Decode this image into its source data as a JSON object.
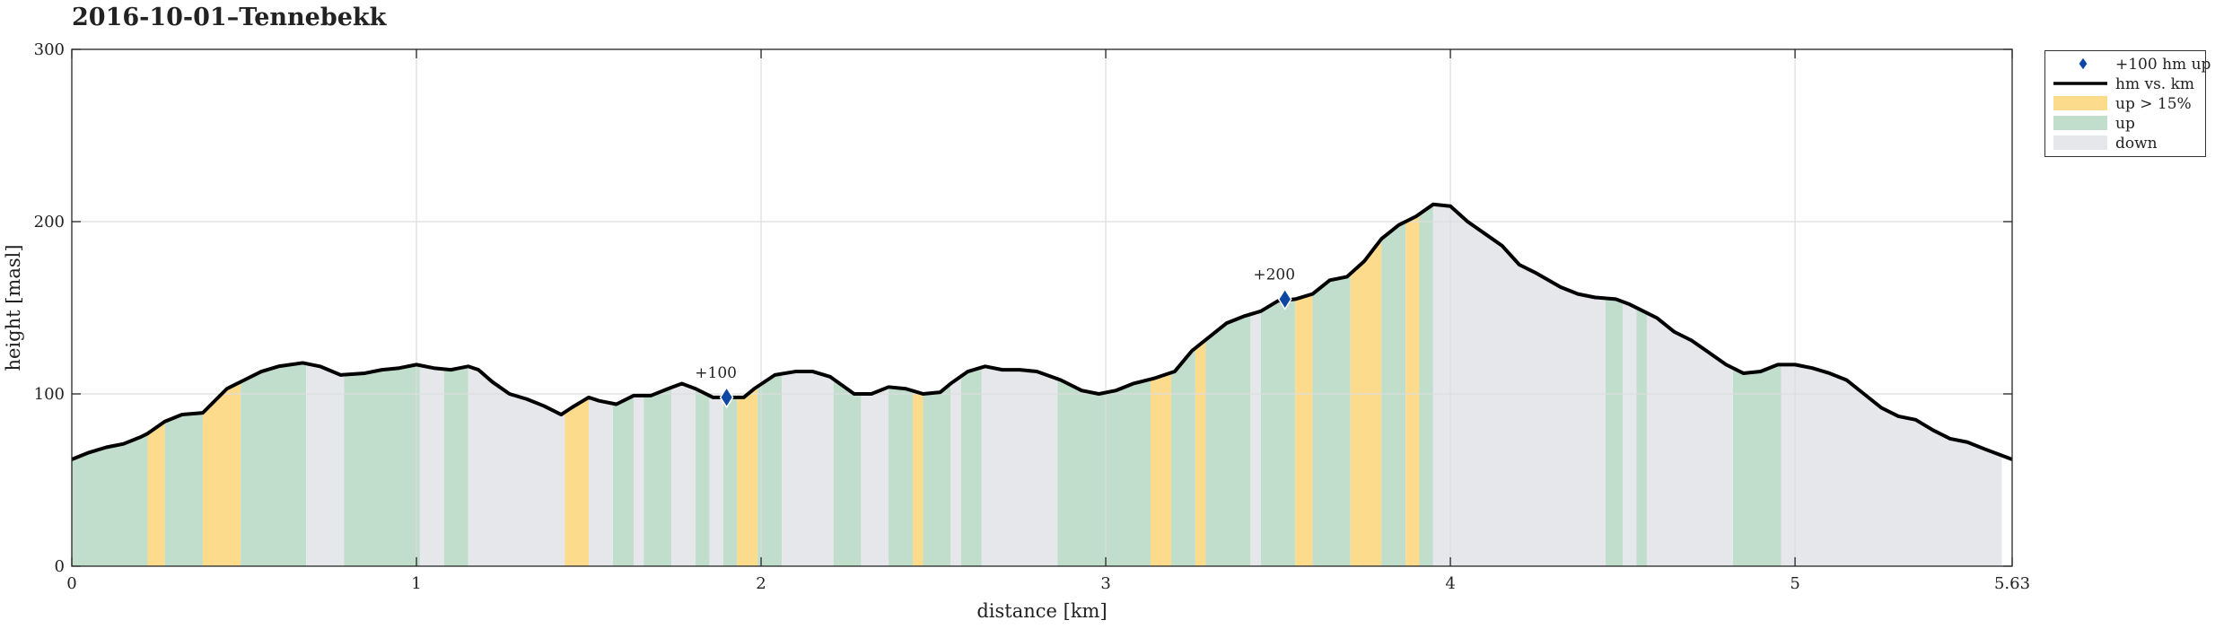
{
  "chart_data": {
    "type": "area",
    "title": "2016-10-01–Tennebekk",
    "xlabel": "distance [km]",
    "ylabel": "height [masl]",
    "xlim": [
      0,
      5.63
    ],
    "ylim": [
      0,
      300
    ],
    "xticks": [
      0,
      1,
      2,
      3,
      4,
      5,
      5.63
    ],
    "xtick_labels": [
      "0",
      "1",
      "2",
      "3",
      "4",
      "5",
      "5.63"
    ],
    "yticks": [
      0,
      100,
      200,
      300
    ],
    "ytick_labels": [
      "0",
      "100",
      "200",
      "300"
    ],
    "grid": true,
    "legend_position": "outside-right-top",
    "colors": {
      "line": "#000000",
      "steep_up": "#fddb8c",
      "up": "#c1ddcc",
      "down": "#e6e7ea",
      "marker": "#0d47a1",
      "grid": "#dddddd"
    },
    "legend": [
      {
        "key": "marker",
        "label": "+100 hm up"
      },
      {
        "key": "line",
        "label": "hm vs. km"
      },
      {
        "key": "steep_up",
        "label": "up > 15%"
      },
      {
        "key": "up",
        "label": "up"
      },
      {
        "key": "down",
        "label": "down"
      }
    ],
    "series": [
      {
        "name": "hm vs. km",
        "x": [
          0,
          0.05,
          0.1,
          0.15,
          0.2,
          0.22,
          0.27,
          0.32,
          0.38,
          0.45,
          0.5,
          0.55,
          0.6,
          0.67,
          0.72,
          0.78,
          0.85,
          0.9,
          0.95,
          1.0,
          1.05,
          1.1,
          1.15,
          1.18,
          1.22,
          1.27,
          1.32,
          1.37,
          1.42,
          1.45,
          1.5,
          1.53,
          1.58,
          1.63,
          1.68,
          1.73,
          1.77,
          1.81,
          1.86,
          1.9,
          1.95,
          1.98,
          2.04,
          2.1,
          2.15,
          2.2,
          2.27,
          2.32,
          2.37,
          2.42,
          2.47,
          2.52,
          2.55,
          2.6,
          2.65,
          2.7,
          2.75,
          2.8,
          2.87,
          2.93,
          2.98,
          3.03,
          3.08,
          3.14,
          3.2,
          3.25,
          3.3,
          3.35,
          3.4,
          3.45,
          3.5,
          3.55,
          3.6,
          3.65,
          3.7,
          3.75,
          3.8,
          3.85,
          3.9,
          3.95,
          4.0,
          4.05,
          4.1,
          4.15,
          4.2,
          4.25,
          4.32,
          4.37,
          4.42,
          4.48,
          4.52,
          4.56,
          4.6,
          4.65,
          4.7,
          4.75,
          4.8,
          4.85,
          4.9,
          4.95,
          5.0,
          5.05,
          5.1,
          5.15,
          5.2,
          5.25,
          5.3,
          5.35,
          5.4,
          5.45,
          5.5,
          5.55,
          5.63
        ],
        "y": [
          62,
          66,
          69,
          71,
          75,
          77,
          84,
          88,
          89,
          103,
          108,
          113,
          116,
          118,
          116,
          111,
          112,
          114,
          115,
          117,
          115,
          114,
          116,
          114,
          107,
          100,
          97,
          93,
          88,
          92,
          98,
          96,
          94,
          99,
          99,
          103,
          106,
          103,
          98,
          98,
          98,
          103,
          111,
          113,
          113,
          110,
          100,
          100,
          104,
          103,
          100,
          101,
          106,
          113,
          116,
          114,
          114,
          113,
          108,
          102,
          100,
          102,
          106,
          109,
          113,
          125,
          133,
          141,
          145,
          148,
          154,
          155,
          158,
          166,
          168,
          177,
          190,
          198,
          203,
          210,
          209,
          200,
          193,
          186,
          175,
          170,
          162,
          158,
          156,
          155,
          152,
          148,
          144,
          136,
          131,
          124,
          117,
          112,
          113,
          117,
          117,
          115,
          112,
          108,
          100,
          92,
          87,
          85,
          79,
          74,
          72,
          68,
          62
        ]
      }
    ],
    "shading_bands": [
      {
        "type": "up",
        "from": 0.0,
        "to": 0.22
      },
      {
        "type": "steep_up",
        "from": 0.22,
        "to": 0.27
      },
      {
        "type": "up",
        "from": 0.27,
        "to": 0.38
      },
      {
        "type": "steep_up",
        "from": 0.38,
        "to": 0.49
      },
      {
        "type": "up",
        "from": 0.49,
        "to": 0.68
      },
      {
        "type": "down",
        "from": 0.68,
        "to": 0.79
      },
      {
        "type": "up",
        "from": 0.79,
        "to": 1.01
      },
      {
        "type": "down",
        "from": 1.01,
        "to": 1.08
      },
      {
        "type": "up",
        "from": 1.08,
        "to": 1.15
      },
      {
        "type": "down",
        "from": 1.15,
        "to": 1.43
      },
      {
        "type": "steep_up",
        "from": 1.43,
        "to": 1.5
      },
      {
        "type": "down",
        "from": 1.5,
        "to": 1.57
      },
      {
        "type": "up",
        "from": 1.57,
        "to": 1.63
      },
      {
        "type": "down",
        "from": 1.63,
        "to": 1.66
      },
      {
        "type": "up",
        "from": 1.66,
        "to": 1.74
      },
      {
        "type": "down",
        "from": 1.74,
        "to": 1.81
      },
      {
        "type": "up",
        "from": 1.81,
        "to": 1.85
      },
      {
        "type": "down",
        "from": 1.85,
        "to": 1.89
      },
      {
        "type": "up",
        "from": 1.89,
        "to": 1.93
      },
      {
        "type": "steep_up",
        "from": 1.93,
        "to": 1.99
      },
      {
        "type": "up",
        "from": 1.99,
        "to": 2.06
      },
      {
        "type": "down",
        "from": 2.06,
        "to": 2.21
      },
      {
        "type": "up",
        "from": 2.21,
        "to": 2.29
      },
      {
        "type": "down",
        "from": 2.29,
        "to": 2.37
      },
      {
        "type": "up",
        "from": 2.37,
        "to": 2.44
      },
      {
        "type": "steep_up",
        "from": 2.44,
        "to": 2.47
      },
      {
        "type": "up",
        "from": 2.47,
        "to": 2.55
      },
      {
        "type": "down",
        "from": 2.55,
        "to": 2.58
      },
      {
        "type": "up",
        "from": 2.58,
        "to": 2.64
      },
      {
        "type": "down",
        "from": 2.64,
        "to": 2.86
      },
      {
        "type": "up",
        "from": 2.86,
        "to": 3.13
      },
      {
        "type": "steep_up",
        "from": 3.13,
        "to": 3.19
      },
      {
        "type": "up",
        "from": 3.19,
        "to": 3.26
      },
      {
        "type": "steep_up",
        "from": 3.26,
        "to": 3.29
      },
      {
        "type": "up",
        "from": 3.29,
        "to": 3.42
      },
      {
        "type": "down",
        "from": 3.42,
        "to": 3.45
      },
      {
        "type": "up",
        "from": 3.45,
        "to": 3.55
      },
      {
        "type": "steep_up",
        "from": 3.55,
        "to": 3.6
      },
      {
        "type": "up",
        "from": 3.6,
        "to": 3.71
      },
      {
        "type": "steep_up",
        "from": 3.71,
        "to": 3.8
      },
      {
        "type": "up",
        "from": 3.8,
        "to": 3.87
      },
      {
        "type": "steep_up",
        "from": 3.87,
        "to": 3.91
      },
      {
        "type": "up",
        "from": 3.91,
        "to": 3.95
      },
      {
        "type": "down",
        "from": 3.95,
        "to": 4.45
      },
      {
        "type": "up",
        "from": 4.45,
        "to": 4.5
      },
      {
        "type": "down",
        "from": 4.5,
        "to": 4.54
      },
      {
        "type": "up",
        "from": 4.54,
        "to": 4.57
      },
      {
        "type": "down",
        "from": 4.57,
        "to": 4.82
      },
      {
        "type": "up",
        "from": 4.82,
        "to": 4.96
      },
      {
        "type": "down",
        "from": 4.96,
        "to": 5.6
      }
    ],
    "markers": [
      {
        "label": "+100",
        "x": 1.9,
        "y": 98
      },
      {
        "label": "+200",
        "x": 3.52,
        "y": 155
      }
    ]
  }
}
